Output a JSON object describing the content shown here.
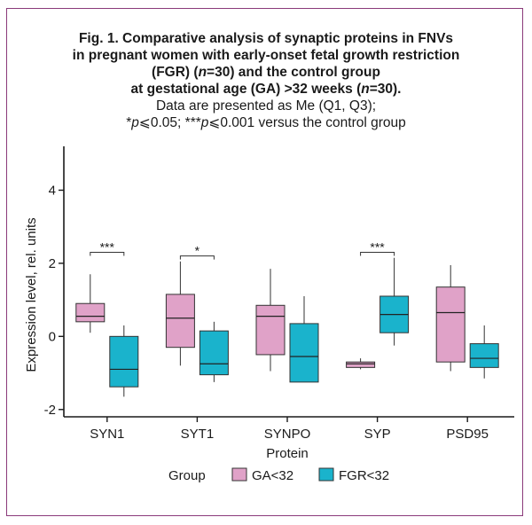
{
  "figure": {
    "title_lines": [
      "Fig. 1. Comparative analysis of synaptic proteins in FNVs",
      "in pregnant women with early-onset fetal growth restriction",
      "(FGR) (n=30) and the control group",
      "at gestational age (GA) >32 weeks (n=30)."
    ],
    "subtitle_lines": [
      "Data are presented as Me (Q1, Q3);",
      "*p⩽0.05; ***p⩽0.001 versus the control group"
    ]
  },
  "chart_data": {
    "type": "boxplot",
    "xlabel": "Protein",
    "ylabel": "Expression level, rel. units",
    "ylim": [
      -2.2,
      5.2
    ],
    "yticks": [
      -2,
      0,
      2,
      4
    ],
    "categories": [
      "SYN1",
      "SYT1",
      "SYNPO",
      "SYP",
      "PSD95"
    ],
    "legend_title": "Group",
    "series": [
      {
        "name": "GA<32",
        "color": "#e0a2c8",
        "boxes": [
          {
            "min": 0.1,
            "q1": 0.4,
            "median": 0.55,
            "q3": 0.9,
            "max": 1.7
          },
          {
            "min": -0.8,
            "q1": -0.3,
            "median": 0.5,
            "q3": 1.15,
            "max": 2.05
          },
          {
            "min": -0.95,
            "q1": -0.5,
            "median": 0.55,
            "q3": 0.85,
            "max": 1.85
          },
          {
            "min": -0.9,
            "q1": -0.85,
            "median": -0.75,
            "q3": -0.7,
            "max": -0.6
          },
          {
            "min": -0.95,
            "q1": -0.7,
            "median": 0.65,
            "q3": 1.35,
            "max": 1.95
          }
        ]
      },
      {
        "name": "FGR<32",
        "color": "#1ab3cc",
        "boxes": [
          {
            "min": -1.65,
            "q1": -1.38,
            "median": -0.9,
            "q3": 0.0,
            "max": 0.3
          },
          {
            "min": -1.25,
            "q1": -1.05,
            "median": -0.75,
            "q3": 0.15,
            "max": 0.4
          },
          {
            "min": -1.25,
            "q1": -1.25,
            "median": -0.55,
            "q3": 0.35,
            "max": 1.1
          },
          {
            "min": -0.25,
            "q1": 0.1,
            "median": 0.6,
            "q3": 1.1,
            "max": 2.15
          },
          {
            "min": -1.15,
            "q1": -0.85,
            "median": -0.6,
            "q3": -0.2,
            "max": 0.3
          }
        ]
      }
    ],
    "significance": [
      {
        "category": "SYN1",
        "label": "***",
        "y": 2.3
      },
      {
        "category": "SYT1",
        "label": "*",
        "y": 2.2
      },
      {
        "category": "SYP",
        "label": "***",
        "y": 2.3
      }
    ]
  }
}
